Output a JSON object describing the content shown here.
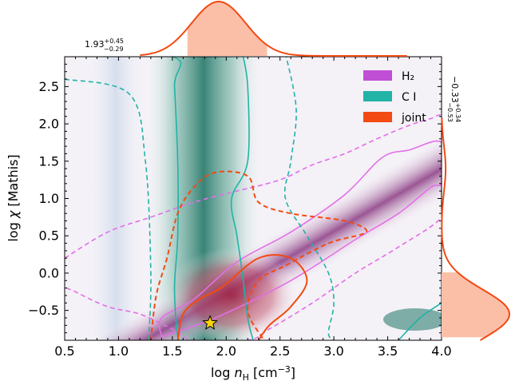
{
  "chart_data": {
    "type": "contour",
    "xlabel": "log n_H [cm^-3]",
    "ylabel": "log χ [Mathis]",
    "xlim": [
      0.5,
      4.0
    ],
    "ylim": [
      -0.9,
      2.9
    ],
    "xticks": [
      0.5,
      1.0,
      1.5,
      2.0,
      2.5,
      3.0,
      3.5,
      4.0
    ],
    "xtick_labels": [
      "0.5",
      "1.0",
      "1.5",
      "2.0",
      "2.5",
      "3.0",
      "3.5",
      "4.0"
    ],
    "yticks": [
      -0.5,
      0.0,
      0.5,
      1.0,
      1.5,
      2.0,
      2.5
    ],
    "ytick_labels": [
      "−0.5",
      "0.0",
      "0.5",
      "1.0",
      "1.5",
      "2.0",
      "2.5"
    ],
    "legend": [
      {
        "label": "H₂",
        "color": "#c04fd6"
      },
      {
        "label": "C I",
        "color": "#21b3a6"
      },
      {
        "label": "joint",
        "color": "#f24a12"
      }
    ],
    "best_fit": {
      "x": 1.85,
      "y": -0.67,
      "marker": "star",
      "color": "#ffd400"
    },
    "x_marginal": {
      "median": 1.93,
      "err_plus": 0.45,
      "err_minus": 0.29,
      "annotation": "1.93 +0.45 −0.29",
      "interval": [
        1.64,
        2.38
      ]
    },
    "y_marginal": {
      "median": -0.33,
      "err_plus": 0.34,
      "err_minus": 0.53,
      "annotation": "−0.33 +0.34 −0.53",
      "interval": [
        -0.86,
        0.01
      ]
    },
    "series": [
      {
        "name": "H2 contours",
        "color": "#e46ee8",
        "solid": [
          [
            1.4,
            -0.85
          ],
          [
            1.9,
            -0.6
          ],
          [
            2.6,
            -0.1
          ],
          [
            3.2,
            0.45
          ],
          [
            3.6,
            0.8
          ],
          [
            3.9,
            1.15
          ],
          [
            4.0,
            1.22
          ],
          [
            4.0,
            1.75
          ],
          [
            3.7,
            1.65
          ],
          [
            3.45,
            1.55
          ],
          [
            3.1,
            1.05
          ],
          [
            2.6,
            0.55
          ],
          [
            2.1,
            0.15
          ],
          [
            1.7,
            -0.35
          ],
          [
            1.4,
            -0.6
          ],
          [
            1.4,
            -0.85
          ]
        ],
        "dashed": [
          [
            0.5,
            0.2
          ],
          [
            0.9,
            0.55
          ],
          [
            1.3,
            0.75
          ],
          [
            1.7,
            0.95
          ],
          [
            2.1,
            1.1
          ],
          [
            2.5,
            1.25
          ],
          [
            2.8,
            1.45
          ],
          [
            3.1,
            1.6
          ],
          [
            3.4,
            1.8
          ],
          [
            3.7,
            1.98
          ],
          [
            3.9,
            2.07
          ],
          [
            4.0,
            2.1
          ],
          [
            4.0,
            1.75
          ],
          [
            4.0,
            1.1
          ],
          [
            4.0,
            0.75
          ],
          [
            3.6,
            0.35
          ],
          [
            3.2,
            0.0
          ],
          [
            2.8,
            -0.4
          ],
          [
            2.4,
            -0.75
          ],
          [
            2.2,
            -0.9
          ],
          [
            1.7,
            -0.9
          ],
          [
            1.5,
            -0.75
          ],
          [
            1.2,
            -0.55
          ],
          [
            0.9,
            -0.45
          ],
          [
            0.6,
            -0.25
          ],
          [
            0.5,
            -0.15
          ],
          [
            0.5,
            0.2
          ]
        ]
      },
      {
        "name": "C I contours",
        "color": "#21b3a6",
        "solid": [
          [
            0.5,
            2.95
          ],
          [
            1.5,
            2.9
          ],
          [
            1.52,
            2.5
          ],
          [
            1.55,
            1.5
          ],
          [
            1.55,
            0.5
          ],
          [
            1.52,
            -0.2
          ],
          [
            1.55,
            -0.85
          ],
          [
            1.6,
            -0.9
          ]
        ],
        "solid_right": [
          [
            2.15,
            2.95
          ],
          [
            2.2,
            2.5
          ],
          [
            2.2,
            1.5
          ],
          [
            2.05,
            1.0
          ],
          [
            2.1,
            0.5
          ],
          [
            2.15,
            0.0
          ],
          [
            2.2,
            -0.6
          ],
          [
            2.25,
            -0.9
          ]
        ],
        "dashed": [
          [
            0.5,
            2.6
          ],
          [
            1.1,
            2.4
          ],
          [
            1.25,
            1.5
          ],
          [
            1.3,
            0.0
          ],
          [
            1.28,
            -0.9
          ]
        ],
        "dashed_right": [
          [
            2.55,
            2.95
          ],
          [
            2.65,
            2.2
          ],
          [
            2.6,
            1.5
          ],
          [
            2.55,
            1.0
          ],
          [
            2.75,
            0.5
          ],
          [
            2.95,
            0.0
          ],
          [
            3.0,
            -0.4
          ],
          [
            2.95,
            -0.8
          ],
          [
            3.0,
            -0.9
          ]
        ],
        "corner": [
          [
            3.6,
            -0.9
          ],
          [
            3.8,
            -0.6
          ],
          [
            4.0,
            -0.4
          ]
        ]
      },
      {
        "name": "joint contours",
        "color": "#f24a12",
        "solid": [
          [
            1.55,
            -0.9
          ],
          [
            1.6,
            -0.55
          ],
          [
            1.75,
            -0.35
          ],
          [
            1.95,
            -0.2
          ],
          [
            2.3,
            0.2
          ],
          [
            2.6,
            0.2
          ],
          [
            2.75,
            -0.1
          ],
          [
            2.6,
            -0.45
          ],
          [
            2.4,
            -0.7
          ],
          [
            2.3,
            -0.9
          ]
        ],
        "dashed": [
          [
            1.3,
            -0.9
          ],
          [
            1.35,
            -0.3
          ],
          [
            1.45,
            0.2
          ],
          [
            1.55,
            0.8
          ],
          [
            1.7,
            1.15
          ],
          [
            1.9,
            1.35
          ],
          [
            2.2,
            1.3
          ],
          [
            2.3,
            0.95
          ],
          [
            2.6,
            0.8
          ],
          [
            3.1,
            0.7
          ],
          [
            3.3,
            0.55
          ],
          [
            2.95,
            0.4
          ],
          [
            2.55,
            0.1
          ],
          [
            2.3,
            -0.1
          ],
          [
            2.2,
            -0.5
          ],
          [
            2.35,
            -0.9
          ]
        ]
      }
    ]
  }
}
